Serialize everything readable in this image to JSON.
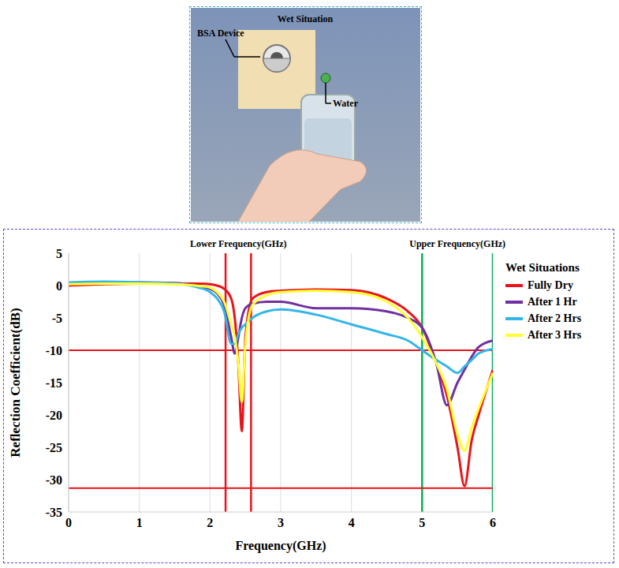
{
  "photo": {
    "title": "Wet Situation",
    "device_label": "BSA Device",
    "water_label": "Water"
  },
  "chart_data": {
    "type": "line",
    "x_label": "Frequency(GHz)",
    "y_label": "Reflection Coefficient(dB)",
    "legend_title": "Wet Situations",
    "legend": "right",
    "grid": true,
    "xlim": [
      0,
      6
    ],
    "xticks": [
      0,
      1,
      2,
      3,
      4,
      5,
      6
    ],
    "ylim": [
      -35,
      5
    ],
    "yticks": [
      -35,
      -30,
      -25,
      -20,
      -15,
      -10,
      -5,
      0,
      5
    ],
    "bands": [
      {
        "label": "Lower Frequency(GHz)",
        "x": [
          2.22,
          2.58
        ],
        "color": "#e8141c"
      },
      {
        "label": "Upper Frequency(GHz)",
        "x": [
          5.0,
          6.0
        ],
        "color": "#00b050"
      }
    ],
    "hlines": [
      {
        "y": -10,
        "color": "#e8141c"
      },
      {
        "y": -31.3,
        "color": "#e8141c"
      }
    ],
    "x": [
      0,
      0.5,
      1,
      1.5,
      1.8,
      2,
      2.1,
      2.2,
      2.3,
      2.35,
      2.4,
      2.45,
      2.5,
      2.6,
      2.8,
      3,
      3.5,
      4,
      4.5,
      4.8,
      5,
      5.2,
      5.35,
      5.5,
      5.6,
      5.7,
      5.8,
      6
    ],
    "series": [
      {
        "name": "Fully Dry",
        "color": "#e8141c",
        "values": [
          0,
          0.2,
          0.3,
          0.3,
          0.3,
          0.2,
          0,
          -0.5,
          -2,
          -5,
          -12,
          -22.5,
          -8,
          -2,
          -1,
          -0.8,
          -0.6,
          -0.7,
          -2,
          -4,
          -6.5,
          -12,
          -17,
          -25,
          -31,
          -24,
          -20,
          -13
        ]
      },
      {
        "name": "After 1 Hr",
        "color": "#7030a0",
        "values": [
          0.3,
          0.5,
          0.5,
          0.4,
          0,
          -0.5,
          -1.2,
          -3,
          -8,
          -10.5,
          -8,
          -5,
          -3.5,
          -2.8,
          -2.5,
          -2.5,
          -3.5,
          -3.5,
          -4,
          -5,
          -6.5,
          -12,
          -18.5,
          -15,
          -13,
          -11,
          -9.5,
          -8.5
        ]
      },
      {
        "name": "After 2 Hrs",
        "color": "#33b5e8",
        "values": [
          0.5,
          0.6,
          0.5,
          0.3,
          -0.2,
          -1,
          -2,
          -4,
          -9,
          -9,
          -7.5,
          -6.5,
          -6,
          -5,
          -4,
          -3.7,
          -4.5,
          -6,
          -7.5,
          -8.5,
          -10,
          -11.5,
          -12.5,
          -13.5,
          -12.5,
          -11.5,
          -10.5,
          -9.8
        ]
      },
      {
        "name": "After 3 Hrs",
        "color": "#ffff33",
        "values": [
          0.2,
          0.3,
          0.3,
          0.2,
          0,
          -0.3,
          -1,
          -2.5,
          -6,
          -8,
          -12,
          -18,
          -9,
          -3,
          -1.5,
          -1,
          -0.8,
          -1,
          -2.5,
          -5,
          -8,
          -12,
          -16,
          -23,
          -25.5,
          -22,
          -19,
          -13.5
        ]
      }
    ]
  }
}
